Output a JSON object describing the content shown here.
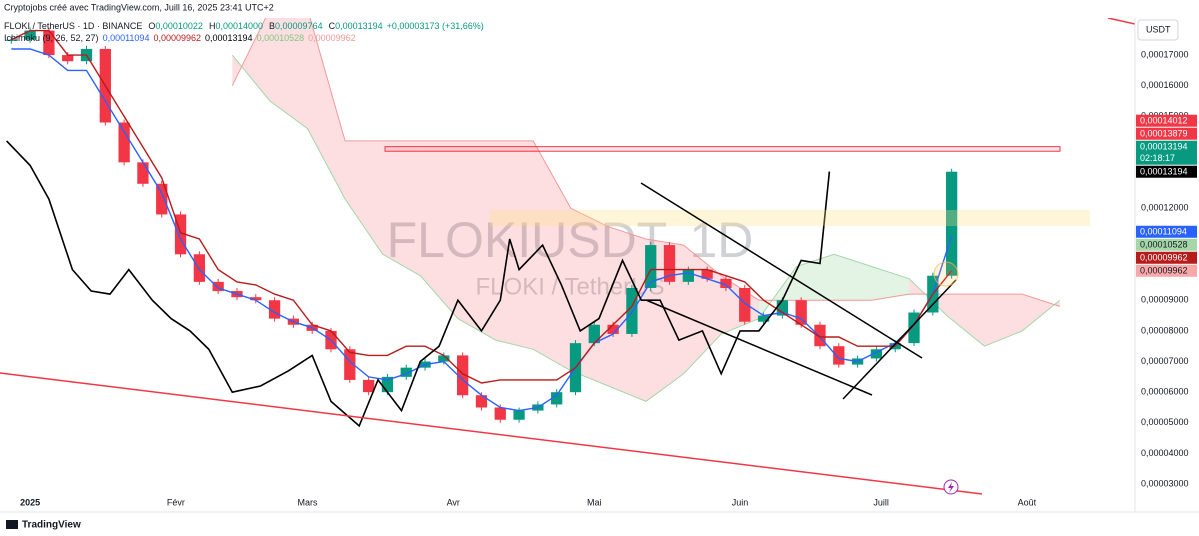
{
  "chart_data": {
    "type": "candlestick",
    "header": "Cryptojobs créé avec TradingView.com, Juill 16, 2025 23:41 UTC+2",
    "legend": {
      "symbol": "FLOKI / TetherUS · 1D · BINANCE",
      "ohlc": [
        {
          "key": "O",
          "value": "0,00010022"
        },
        {
          "key": "H",
          "value": "0,00014000"
        },
        {
          "key": "B",
          "value": "0,00009764"
        },
        {
          "key": "C",
          "value": "0,00013194"
        }
      ],
      "change": "+0,00003173 (+31,66%)",
      "value_color": "#089981",
      "indicator": "Ichimoku (9, 26, 52, 27)",
      "indicator_values": [
        {
          "text": "0,00011094",
          "color": "#2962ff"
        },
        {
          "text": "0,00009962",
          "color": "#b71c1c"
        },
        {
          "text": "0,00013194",
          "color": "#000000"
        },
        {
          "text": "0,00010528",
          "color": "#81c784"
        },
        {
          "text": "0,00009962",
          "color": "#ef9a9a"
        }
      ]
    },
    "watermark": {
      "title": "FLOKIUSDT, 1D",
      "subtitle": "FLOKI / TetherUS"
    },
    "currency": "USDT",
    "footer": "TradingView",
    "xlim": [
      -6.4,
      235
    ],
    "ylim": [
      2.09e-05,
      0.0001821
    ],
    "xticks": [
      {
        "value": 0,
        "label": "2025"
      },
      {
        "value": 31,
        "label": "Févr"
      },
      {
        "value": 59,
        "label": "Mars"
      },
      {
        "value": 90,
        "label": "Avr"
      },
      {
        "value": 120,
        "label": "Mai"
      },
      {
        "value": 151,
        "label": "Juin"
      },
      {
        "value": 181,
        "label": "Juill"
      },
      {
        "value": 212,
        "label": "Août"
      }
    ],
    "yticks": [
      {
        "value": 0.00017,
        "label": "0,00017000"
      },
      {
        "value": 0.00016,
        "label": "0,00016000"
      },
      {
        "value": 0.00015,
        "label": "0,00015000"
      },
      {
        "value": 0.00012,
        "label": "0,00012000"
      },
      {
        "value": 9e-05,
        "label": "0,00009000"
      },
      {
        "value": 8e-05,
        "label": "0,00008000"
      },
      {
        "value": 7e-05,
        "label": "0,00007000"
      },
      {
        "value": 6e-05,
        "label": "0,00006000"
      },
      {
        "value": 5e-05,
        "label": "0,00005000"
      },
      {
        "value": 4e-05,
        "label": "0,00004000"
      },
      {
        "value": 3e-05,
        "label": "0,00003000"
      }
    ],
    "candles": {
      "up_color": "#089981",
      "down_color": "#f23645",
      "x": [
        -4,
        0,
        4,
        8,
        12,
        16,
        20,
        24,
        28,
        32,
        36,
        40,
        44,
        48,
        52,
        56,
        60,
        64,
        68,
        72,
        76,
        80,
        84,
        88,
        92,
        96,
        100,
        104,
        108,
        112,
        116,
        120,
        124,
        128,
        132,
        136,
        140,
        144,
        148,
        152,
        156,
        160,
        164,
        168,
        172,
        176,
        180,
        184,
        188,
        192,
        196
      ],
      "values": [
        0.000175,
        0.000178,
        0.00017,
        0.000168,
        0.000172,
        0.000148,
        0.000135,
        0.000128,
        0.000118,
        0.000105,
        9.6e-05,
        9.3e-05,
        9.1e-05,
        9e-05,
        8.4e-05,
        8.2e-05,
        8e-05,
        7.4e-05,
        6.4e-05,
        6e-05,
        6.5e-05,
        6.8e-05,
        7e-05,
        7.2e-05,
        5.9e-05,
        5.5e-05,
        5.1e-05,
        5.4e-05,
        5.6e-05,
        6e-05,
        7.6e-05,
        8.2e-05,
        7.9e-05,
        9.4e-05,
        0.000108,
        9.6e-05,
        0.0001,
        9.7e-05,
        9.4e-05,
        8.3e-05,
        8.5e-05,
        9e-05,
        8.2e-05,
        7.5e-05,
        6.9e-05,
        7.1e-05,
        7.4e-05,
        7.6e-05,
        8.6e-05,
        9.8e-05,
        0.00013194
      ]
    },
    "tenkan": {
      "color": "#2962ff",
      "values": [
        0.000172,
        0.000172,
        0.00017,
        0.000165,
        0.000165,
        0.000155,
        0.000145,
        0.000135,
        0.000125,
        0.00011,
        0.0001,
        9.4e-05,
        9.2e-05,
        9e-05,
        8.6e-05,
        8.3e-05,
        8.1e-05,
        7.7e-05,
        7e-05,
        6.5e-05,
        6.4e-05,
        6.6e-05,
        6.9e-05,
        7e-05,
        6.4e-05,
        5.9e-05,
        5.5e-05,
        5.4e-05,
        5.5e-05,
        5.9e-05,
        6.8e-05,
        7.6e-05,
        7.9e-05,
        8.6e-05,
        9.6e-05,
        9.8e-05,
        9.9e-05,
        9.7e-05,
        9.5e-05,
        8.9e-05,
        8.5e-05,
        8.6e-05,
        8.4e-05,
        7.8e-05,
        7.1e-05,
        7e-05,
        7.3e-05,
        7.6e-05,
        8.2e-05,
        9.2e-05,
        0.00011094
      ]
    },
    "kijun": {
      "color": "#b71c1c",
      "values": [
        0.000175,
        0.000178,
        0.000178,
        0.00017,
        0.00017,
        0.00016,
        0.00015,
        0.00014,
        0.00013,
        0.000112,
        0.00011,
        0.0001,
        9.6e-05,
        9.5e-05,
        9.2e-05,
        9e-05,
        8.2e-05,
        8e-05,
        7.3e-05,
        7.2e-05,
        7.2e-05,
        7.5e-05,
        7.5e-05,
        7.2e-05,
        6.6e-05,
        6.3e-05,
        6.4e-05,
        6.4e-05,
        6.4e-05,
        6.4e-05,
        6.8e-05,
        7.6e-05,
        8.2e-05,
        8.8e-05,
        0.0001,
        0.0001,
        0.0001,
        0.0001,
        9.8e-05,
        9.6e-05,
        9e-05,
        8.6e-05,
        8.2e-05,
        7.8e-05,
        7.8e-05,
        7.5e-05,
        7.5e-05,
        7.5e-05,
        8.2e-05,
        9.2e-05,
        9.962e-05
      ]
    },
    "chikou": {
      "color": "#000000",
      "x": [
        -5,
        0,
        4,
        9,
        13,
        17,
        21,
        26,
        30,
        34,
        38,
        43,
        49,
        55,
        60,
        64,
        70,
        74,
        79,
        83,
        87,
        91,
        96,
        100,
        102,
        104,
        109,
        113,
        117,
        121,
        126,
        130,
        134,
        138,
        143,
        147,
        151,
        155,
        160,
        164,
        168,
        170
      ],
      "values": [
        0.000142,
        0.000134,
        0.000123,
        0.0001,
        9.3e-05,
        9.2e-05,
        0.0001,
        9e-05,
        8.4e-05,
        8e-05,
        7.4e-05,
        6e-05,
        6.2e-05,
        6.7e-05,
        7.2e-05,
        5.7e-05,
        4.9e-05,
        6.4e-05,
        5.4e-05,
        7e-05,
        7.5e-05,
        9e-05,
        8e-05,
        9e-05,
        0.00011,
        0.0001,
        0.000108,
        9.5e-05,
        8e-05,
        8.4e-05,
        0.000103,
        9e-05,
        9e-05,
        7.7e-05,
        8e-05,
        6.6e-05,
        8e-05,
        8e-05,
        9e-05,
        0.000103,
        0.000102,
        0.000132
      ]
    },
    "cloud": {
      "span_a_color": "#a5d6a7",
      "span_b_color": "#ef9a9a",
      "fill_up": "rgba(129,199,132,0.22)",
      "fill_down": "rgba(242,54,69,0.16)",
      "x": [
        43,
        51,
        59,
        67,
        75,
        83,
        91,
        99,
        107,
        115,
        123,
        131,
        139,
        147,
        155,
        163,
        171,
        179,
        187,
        195,
        203,
        211,
        219
      ],
      "span_a": [
        0.00017,
        0.000155,
        0.000146,
        0.000123,
        0.000105,
        9.8e-05,
        8.4e-05,
        7.7e-05,
        7.4e-05,
        6.7e-05,
        6.2e-05,
        5.7e-05,
        6.6e-05,
        7.9e-05,
        8.4e-05,
        0.000101,
        0.000105,
        0.000101,
        9.7e-05,
        8.5e-05,
        7.5e-05,
        8e-05,
        9e-05
      ],
      "span_b": [
        0.00016,
        0.000185,
        0.000185,
        0.000142,
        0.000142,
        0.000142,
        0.000142,
        0.000142,
        0.000142,
        0.00012,
        0.000114,
        0.00011,
        0.000108,
        9.8e-05,
        9e-05,
        9e-05,
        9e-05,
        9e-05,
        9.2e-05,
        9.2e-05,
        9.2e-05,
        9.2e-05,
        8.8e-05
      ]
    },
    "price_tags": [
      {
        "value": 0.00014012,
        "label": "0,00014012",
        "color": "#f23645",
        "text_color": "#ffffff"
      },
      {
        "value": 0.00013879,
        "label": "0,00013879",
        "color": "#f23645",
        "text_color": "#ffffff"
      },
      {
        "value": 0.00013194,
        "label": "0,00013194",
        "sub": "02:18:17",
        "color": "#089981",
        "text_color": "#ffffff"
      },
      {
        "value": 0.00013194,
        "label": "0,00013194",
        "color": "#000000",
        "text_color": "#ffffff"
      },
      {
        "value": 0.00011094,
        "label": "0,00011094",
        "color": "#2962ff",
        "text_color": "#ffffff"
      },
      {
        "value": 0.00010528,
        "label": "0,00010528",
        "color": "#a5d6a7",
        "text_color": "#131722"
      },
      {
        "value": 9.962e-05,
        "label": "0,00009962",
        "color": "#b71c1c",
        "text_color": "#ffffff"
      },
      {
        "value": 9.962e-05,
        "label": "0,00009962",
        "color": "#f7a8a8",
        "text_color": "#131722"
      }
    ]
  }
}
